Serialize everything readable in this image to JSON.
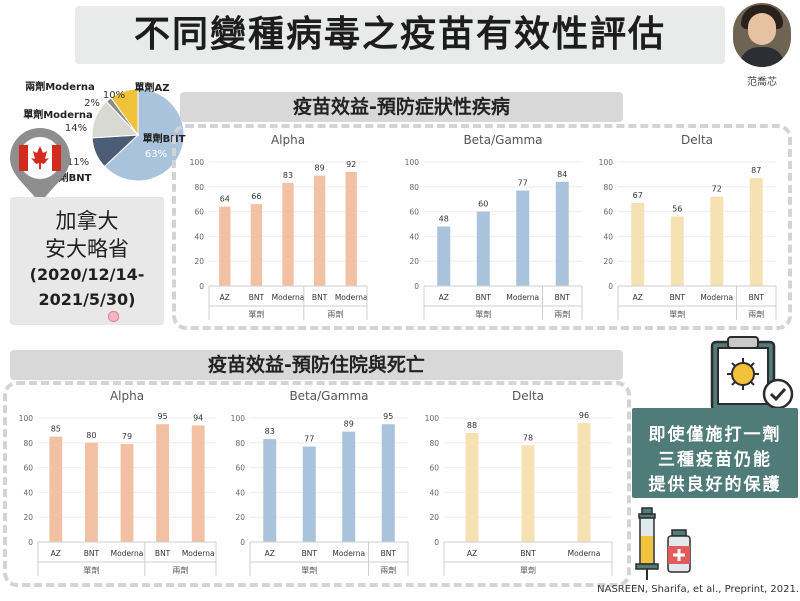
{
  "title": "不同變種病毒之疫苗有效性評估",
  "speaker": "范喬芯",
  "location": {
    "country": "加拿大",
    "province": "安大略省",
    "period_line1": "(2020/12/14-",
    "period_line2": "2021/5/30)"
  },
  "section_symptomatic": "疫苗效益-預防症狀性疾病",
  "section_hospital": "疫苗效益-預防住院與死亡",
  "note": {
    "line1": "即使僅施打一劑",
    "line2": "三種疫苗仍能",
    "line3": "提供良好的保護"
  },
  "citation": "NASREEN, Sharifa, et al., Preprint, 2021.",
  "colors": {
    "alpha": "#f2c1a3",
    "beta": "#a9c3dc",
    "delta": "#f6e1b3",
    "note_bg": "#4f7b78"
  },
  "chart_data": [
    {
      "type": "pie",
      "labels": [
        "單劑BNT",
        "兩劑BNT",
        "單劑Moderna",
        "兩劑Moderna",
        "單劑AZ"
      ],
      "values": [
        63,
        11,
        14,
        2,
        10
      ],
      "value_labels": [
        "63%",
        "11%",
        "14%",
        "2%",
        "10%"
      ],
      "colors": [
        "#a9c3dc",
        "#4a5d74",
        "#d9d9d3",
        "#8a8a8a",
        "#f0c23a"
      ]
    },
    {
      "type": "bar",
      "title": "Alpha",
      "section": "symptomatic",
      "categories": [
        "AZ",
        "BNT",
        "Moderna",
        "BNT",
        "Moderna"
      ],
      "values": [
        64,
        66,
        83,
        89,
        92
      ],
      "groups": [
        {
          "label": "單劑",
          "count": 3
        },
        {
          "label": "兩劑",
          "count": 2
        }
      ],
      "ylim": [
        0,
        100
      ],
      "yticks": [
        0,
        20,
        40,
        60,
        80,
        100
      ],
      "color": "#f2c1a3"
    },
    {
      "type": "bar",
      "title": "Beta/Gamma",
      "section": "symptomatic",
      "categories": [
        "AZ",
        "BNT",
        "Moderna",
        "BNT"
      ],
      "values": [
        48,
        60,
        77,
        84
      ],
      "groups": [
        {
          "label": "單劑",
          "count": 3
        },
        {
          "label": "兩劑",
          "count": 1
        }
      ],
      "ylim": [
        0,
        100
      ],
      "yticks": [
        0,
        20,
        40,
        60,
        80,
        100
      ],
      "color": "#a9c3dc"
    },
    {
      "type": "bar",
      "title": "Delta",
      "section": "symptomatic",
      "categories": [
        "AZ",
        "BNT",
        "Moderna",
        "BNT"
      ],
      "values": [
        67,
        56,
        72,
        87
      ],
      "groups": [
        {
          "label": "單劑",
          "count": 3
        },
        {
          "label": "兩劑",
          "count": 1
        }
      ],
      "ylim": [
        0,
        100
      ],
      "yticks": [
        0,
        20,
        40,
        60,
        80,
        100
      ],
      "color": "#f6e1b3"
    },
    {
      "type": "bar",
      "title": "Alpha",
      "section": "hospital",
      "categories": [
        "AZ",
        "BNT",
        "Moderna",
        "BNT",
        "Moderna"
      ],
      "values": [
        85,
        80,
        79,
        95,
        94
      ],
      "groups": [
        {
          "label": "單劑",
          "count": 3
        },
        {
          "label": "兩劑",
          "count": 2
        }
      ],
      "ylim": [
        0,
        100
      ],
      "yticks": [
        0,
        20,
        40,
        60,
        80,
        100
      ],
      "color": "#f2c1a3"
    },
    {
      "type": "bar",
      "title": "Beta/Gamma",
      "section": "hospital",
      "categories": [
        "AZ",
        "BNT",
        "Moderna",
        "BNT"
      ],
      "values": [
        83,
        77,
        89,
        95
      ],
      "groups": [
        {
          "label": "單劑",
          "count": 3
        },
        {
          "label": "兩劑",
          "count": 1
        }
      ],
      "ylim": [
        0,
        100
      ],
      "yticks": [
        0,
        20,
        40,
        60,
        80,
        100
      ],
      "color": "#a9c3dc"
    },
    {
      "type": "bar",
      "title": "Delta",
      "section": "hospital",
      "categories": [
        "AZ",
        "BNT",
        "Moderna"
      ],
      "values": [
        88,
        78,
        96
      ],
      "groups": [
        {
          "label": "單劑",
          "count": 3
        }
      ],
      "ylim": [
        0,
        100
      ],
      "yticks": [
        0,
        20,
        40,
        60,
        80,
        100
      ],
      "color": "#f6e1b3"
    }
  ]
}
